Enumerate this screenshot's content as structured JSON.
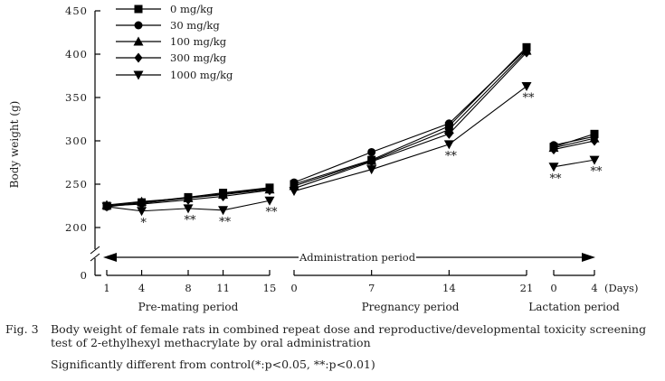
{
  "chart_data": {
    "type": "line",
    "ylabel": "Body weight (g)",
    "x_unit_label": "(Days)",
    "admin_arrow_label": "Administration period",
    "y_ticks": [
      450,
      400,
      350,
      300,
      250,
      200,
      0
    ],
    "ylim": [
      200,
      450
    ],
    "grid": false,
    "legend_position": "top-left-inside",
    "periods": [
      {
        "label": "Pre-mating period",
        "ticks": [
          1,
          4,
          8,
          11,
          15
        ]
      },
      {
        "label": "Pregnancy period",
        "ticks": [
          0,
          7,
          14,
          21
        ]
      },
      {
        "label": "Lactation period",
        "ticks": [
          0,
          4
        ]
      }
    ],
    "series": [
      {
        "name": "0 mg/kg",
        "marker": "square",
        "values": [
          [
            225,
            229,
            235,
            240,
            246
          ],
          [
            250,
            278,
            317,
            408
          ],
          [
            293,
            308
          ]
        ]
      },
      {
        "name": "30 mg/kg",
        "marker": "circle",
        "values": [
          [
            224,
            228,
            234,
            239,
            245
          ],
          [
            252,
            287,
            320,
            406
          ],
          [
            295,
            305
          ]
        ]
      },
      {
        "name": "100 mg/kg",
        "marker": "triangle-up",
        "values": [
          [
            226,
            230,
            234,
            238,
            244
          ],
          [
            248,
            277,
            313,
            404
          ],
          [
            292,
            303
          ]
        ]
      },
      {
        "name": "300 mg/kg",
        "marker": "diamond",
        "values": [
          [
            225,
            227,
            232,
            236,
            243
          ],
          [
            245,
            276,
            308,
            402
          ],
          [
            290,
            300
          ]
        ]
      },
      {
        "name": "1000 mg/kg",
        "marker": "triangle-down",
        "values": [
          [
            224,
            219,
            222,
            220,
            231
          ],
          [
            242,
            267,
            296,
            363
          ],
          [
            270,
            278
          ]
        ],
        "significance": [
          [
            null,
            "*",
            "**",
            "**",
            "**"
          ],
          [
            null,
            null,
            "**",
            "**"
          ],
          [
            "**",
            "**"
          ]
        ]
      }
    ],
    "colors": {
      "line": "#000000",
      "marker": "#000000",
      "text": "#1a1a1a"
    }
  },
  "caption": {
    "fig_label": "Fig. 3",
    "text": "Body weight of female rats in combined repeat dose and reproductive/developmental toxicity screening test of 2-ethylhexyl methacrylate by oral administration",
    "note": "Significantly different from control(*:p<0.05, **:p<0.01)"
  }
}
